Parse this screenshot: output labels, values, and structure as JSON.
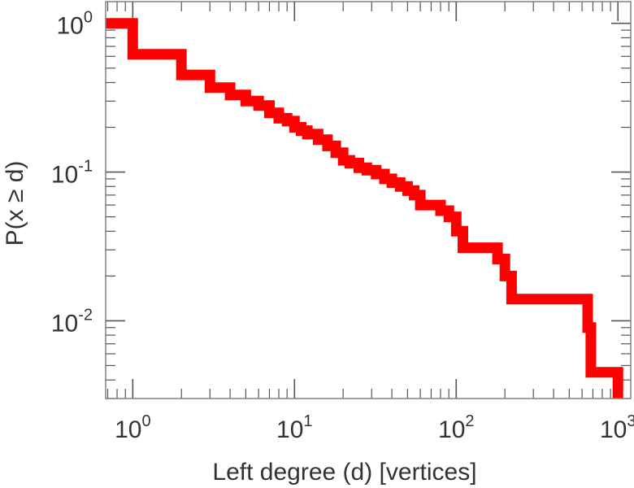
{
  "chart_data": {
    "type": "line",
    "subtype": "step-ccdf",
    "title": "",
    "xlabel": "Left degree (d) [vertices]",
    "ylabel": "P(x ≥ d)",
    "x_scale": "log",
    "y_scale": "log",
    "xlim": [
      0.68,
      1200
    ],
    "ylim": [
      0.003,
      1.4
    ],
    "grid": false,
    "legend": "none",
    "series_color": "#ff0000",
    "x_ticks": [
      {
        "base": "10",
        "exp": "0",
        "value": 1
      },
      {
        "base": "10",
        "exp": "1",
        "value": 10
      },
      {
        "base": "10",
        "exp": "2",
        "value": 100
      },
      {
        "base": "10",
        "exp": "3",
        "value": 1000
      }
    ],
    "y_ticks": [
      {
        "base": "10",
        "exp": "0",
        "value": 1
      },
      {
        "base": "10",
        "exp": "-1",
        "value": 0.1
      },
      {
        "base": "10",
        "exp": "-2",
        "value": 0.01
      }
    ],
    "series": [
      {
        "x": [
          0.68,
          1,
          2,
          3,
          4,
          5,
          6,
          7,
          8,
          9,
          10,
          11,
          12,
          14,
          16,
          18,
          20,
          22,
          25,
          28,
          32,
          36,
          40,
          45,
          50,
          55,
          60,
          80,
          90,
          100,
          110,
          180,
          200,
          220,
          650,
          680,
          1000
        ],
        "y": [
          1.0,
          0.62,
          0.45,
          0.37,
          0.33,
          0.3,
          0.28,
          0.25,
          0.23,
          0.22,
          0.2,
          0.19,
          0.18,
          0.165,
          0.15,
          0.135,
          0.12,
          0.115,
          0.107,
          0.103,
          0.097,
          0.09,
          0.085,
          0.08,
          0.075,
          0.07,
          0.06,
          0.055,
          0.05,
          0.04,
          0.031,
          0.026,
          0.02,
          0.014,
          0.009,
          0.0045,
          0.0045
        ]
      }
    ]
  }
}
